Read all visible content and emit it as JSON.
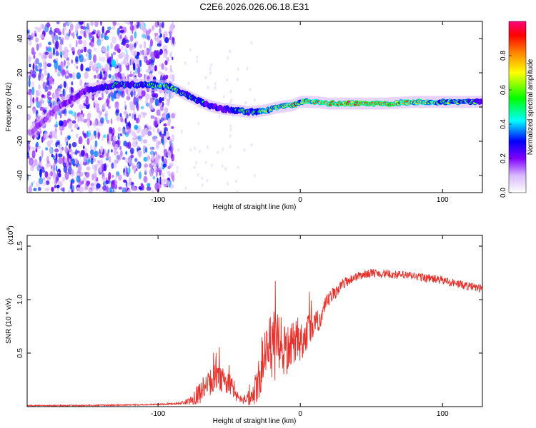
{
  "title": "C2E6.2026.026.06.18.E31",
  "chart_data": [
    {
      "type": "heatmap",
      "title": "C2E6.2026.026.06.18.E31",
      "xlabel": "Height of straight line (km)",
      "ylabel": "Frequency (Hz)",
      "xlim": [
        -192,
        128
      ],
      "ylim": [
        -50,
        50
      ],
      "xticks": [
        -100,
        0,
        100
      ],
      "xtick_labels": [
        "-100",
        "0",
        "100"
      ],
      "yticks": [
        -40,
        -20,
        0,
        20,
        40
      ],
      "ytick_labels": [
        "-40",
        "-20",
        "0",
        "20",
        "40"
      ],
      "colorbar": {
        "label": "Normalized spectral amplitude",
        "range": [
          0,
          1
        ],
        "ticks": [
          0.0,
          0.2,
          0.4,
          0.6,
          0.8
        ],
        "tick_labels": [
          "0.0",
          "0.2",
          "0.4",
          "0.6",
          "0.8"
        ],
        "colors": [
          "#ffffff",
          "#d8b8ff",
          "#8000ff",
          "#0000ff",
          "#00ffff",
          "#00ff00",
          "#ffff00",
          "#ff8000",
          "#ff0000",
          "#ff0080"
        ]
      },
      "noise_region_x": [
        -192,
        -92
      ],
      "ridge": {
        "x": [
          -190,
          -170,
          -150,
          -130,
          -110,
          -92,
          -85,
          -75,
          -65,
          -55,
          -45,
          -35,
          -25,
          -15,
          -5,
          0,
          10,
          20,
          40,
          60,
          80,
          100,
          120,
          128
        ],
        "freq": [
          -15,
          0,
          10,
          13,
          13,
          12,
          9,
          5,
          1,
          -1,
          -2,
          -3,
          -2,
          0,
          1,
          3,
          3,
          2,
          2,
          2,
          3,
          3,
          3,
          3
        ],
        "amplitude": [
          0.3,
          0.35,
          0.45,
          0.55,
          0.6,
          0.65,
          0.6,
          0.55,
          0.5,
          0.5,
          0.55,
          0.6,
          0.65,
          0.8,
          0.85,
          0.75,
          0.85,
          0.95,
          0.98,
          0.98,
          0.85,
          0.7,
          0.6,
          0.55
        ]
      }
    },
    {
      "type": "line",
      "xlabel": "Height of straight line (km)",
      "ylabel": "SNR (10 * v/v)",
      "multiplier_label": "(x10",
      "multiplier_exp": "4",
      "xlim": [
        -192,
        128
      ],
      "ylim": [
        0,
        1.6
      ],
      "xticks": [
        -100,
        0,
        100
      ],
      "xtick_labels": [
        "-100",
        "0",
        "100"
      ],
      "yticks": [
        0.5,
        1.0,
        1.5
      ],
      "ytick_labels": [
        "0.5",
        "1.0",
        "1.5"
      ],
      "line_color": "#e8302a",
      "series": [
        {
          "name": "SNR",
          "x": [
            -192,
            -150,
            -100,
            -85,
            -78,
            -72,
            -66,
            -60,
            -55,
            -50,
            -45,
            -40,
            -35,
            -30,
            -26,
            -22,
            -18,
            -14,
            -10,
            -6,
            -2,
            0,
            5,
            10,
            15,
            20,
            30,
            40,
            50,
            60,
            70,
            80,
            90,
            100,
            110,
            120,
            128
          ],
          "y": [
            0.01,
            0.01,
            0.02,
            0.03,
            0.05,
            0.12,
            0.18,
            0.28,
            0.25,
            0.22,
            0.1,
            0.04,
            0.06,
            0.2,
            0.4,
            0.55,
            0.55,
            0.55,
            0.5,
            0.58,
            0.62,
            0.6,
            0.7,
            0.75,
            0.85,
            1.0,
            1.15,
            1.22,
            1.25,
            1.24,
            1.23,
            1.22,
            1.2,
            1.18,
            1.15,
            1.12,
            1.1
          ],
          "noise": [
            0.005,
            0.006,
            0.006,
            0.01,
            0.03,
            0.1,
            0.12,
            0.12,
            0.12,
            0.1,
            0.05,
            0.02,
            0.06,
            0.2,
            0.25,
            0.3,
            0.35,
            0.3,
            0.25,
            0.2,
            0.2,
            0.2,
            0.15,
            0.12,
            0.1,
            0.08,
            0.05,
            0.04,
            0.04,
            0.04,
            0.04,
            0.04,
            0.04,
            0.04,
            0.04,
            0.04,
            0.04
          ]
        }
      ]
    }
  ]
}
